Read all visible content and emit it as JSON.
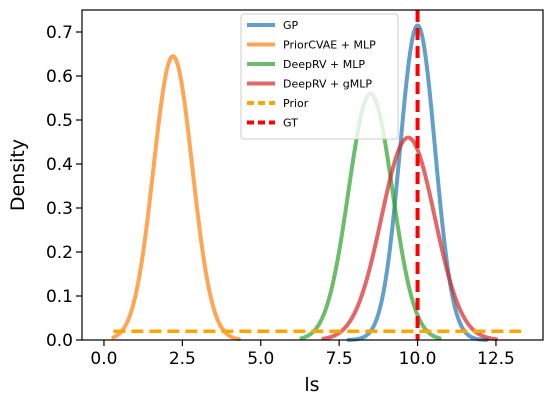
{
  "chart_data": {
    "type": "line",
    "title": "",
    "xlabel": "ls",
    "ylabel": "Density",
    "xlim": [
      -0.7,
      14.0
    ],
    "ylim": [
      0.0,
      0.75
    ],
    "x_ticks": [
      0.0,
      2.5,
      5.0,
      7.5,
      10.0,
      12.5
    ],
    "x_tick_labels": [
      "0.0",
      "2.5",
      "5.0",
      "7.5",
      "10.0",
      "12.5"
    ],
    "y_ticks": [
      0.0,
      0.1,
      0.2,
      0.3,
      0.4,
      0.5,
      0.6,
      0.7
    ],
    "y_tick_labels": [
      "0.0",
      "0.1",
      "0.2",
      "0.3",
      "0.4",
      "0.5",
      "0.6",
      "0.7"
    ],
    "grid": false,
    "legend_position": "top-right",
    "series": [
      {
        "name": "GP",
        "color": "#1f77b4",
        "style": "solid",
        "shape": "density",
        "mean": 10.0,
        "sd": 0.56,
        "peak": 0.715,
        "range": [
          7.8,
          12.2
        ]
      },
      {
        "name": "PriorCVAE + MLP",
        "color": "#ff7f0e",
        "style": "solid",
        "shape": "density",
        "mean": 2.2,
        "sd": 0.62,
        "peak": 0.645,
        "range": [
          0.3,
          4.3
        ]
      },
      {
        "name": "DeepRV + MLP",
        "color": "#2ca02c",
        "style": "solid",
        "shape": "density",
        "mean": 8.5,
        "sd": 0.7,
        "peak": 0.56,
        "range": [
          6.3,
          10.7
        ]
      },
      {
        "name": "DeepRV + gMLP",
        "color": "#d62728",
        "style": "solid",
        "shape": "density",
        "mean": 9.7,
        "sd": 0.85,
        "peak": 0.46,
        "range": [
          7.0,
          12.5
        ]
      },
      {
        "name": "Prior",
        "color": "#ffa500",
        "style": "dashed",
        "shape": "uniform",
        "y": 0.02,
        "range": [
          0.3,
          13.3
        ]
      },
      {
        "name": "GT",
        "color": "#ff0000",
        "style": "dashed",
        "shape": "vline",
        "x": 10.0
      }
    ]
  }
}
